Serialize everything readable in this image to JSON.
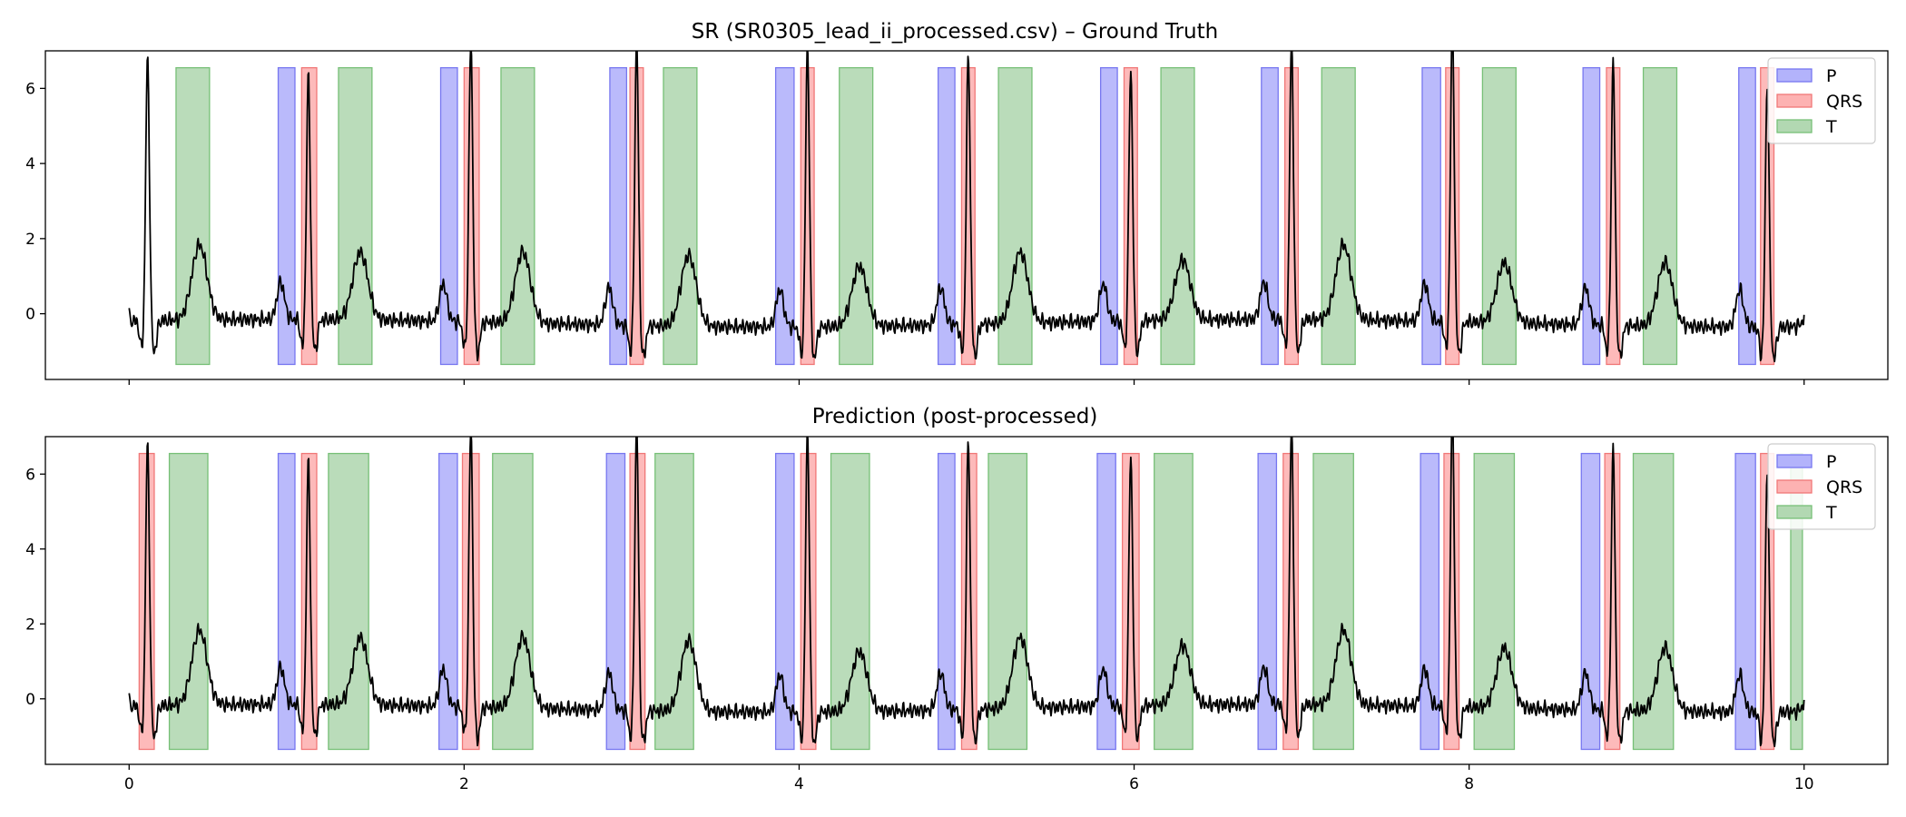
{
  "chart_data": [
    {
      "type": "line",
      "title": "SR (SR0305_lead_ii_processed.csv) – Ground Truth",
      "xlabel": "",
      "ylabel": "",
      "xlim": [
        -0.5,
        10.5
      ],
      "ylim": [
        -1.75,
        7.0
      ],
      "xticks": [],
      "yticks": [
        0,
        2,
        4,
        6
      ],
      "grid": false,
      "legend_position": "top-right",
      "signal_color": "#000000",
      "band_range": [
        -1.35,
        6.55
      ],
      "legend": [
        {
          "label": "P",
          "fill": "#b3b3fb",
          "stroke": "#7777f0"
        },
        {
          "label": "QRS",
          "fill": "#fdb2b2",
          "stroke": "#f07777"
        },
        {
          "label": "T",
          "fill": "#b2d8b2",
          "stroke": "#77c077"
        }
      ],
      "segments": [
        {
          "label": "T",
          "start": 0.28,
          "end": 0.48
        },
        {
          "label": "P",
          "start": 0.89,
          "end": 0.99
        },
        {
          "label": "QRS",
          "start": 1.03,
          "end": 1.12
        },
        {
          "label": "T",
          "start": 1.25,
          "end": 1.45
        },
        {
          "label": "P",
          "start": 1.86,
          "end": 1.96
        },
        {
          "label": "QRS",
          "start": 2.0,
          "end": 2.09
        },
        {
          "label": "T",
          "start": 2.22,
          "end": 2.42
        },
        {
          "label": "P",
          "start": 2.87,
          "end": 2.97
        },
        {
          "label": "QRS",
          "start": 2.99,
          "end": 3.07
        },
        {
          "label": "T",
          "start": 3.19,
          "end": 3.39
        },
        {
          "label": "P",
          "start": 3.86,
          "end": 3.97
        },
        {
          "label": "QRS",
          "start": 4.01,
          "end": 4.09
        },
        {
          "label": "T",
          "start": 4.24,
          "end": 4.44
        },
        {
          "label": "P",
          "start": 4.83,
          "end": 4.93
        },
        {
          "label": "QRS",
          "start": 4.97,
          "end": 5.05
        },
        {
          "label": "T",
          "start": 5.19,
          "end": 5.39
        },
        {
          "label": "P",
          "start": 5.8,
          "end": 5.9
        },
        {
          "label": "QRS",
          "start": 5.94,
          "end": 6.02
        },
        {
          "label": "T",
          "start": 6.16,
          "end": 6.36
        },
        {
          "label": "P",
          "start": 6.76,
          "end": 6.86
        },
        {
          "label": "QRS",
          "start": 6.9,
          "end": 6.98
        },
        {
          "label": "T",
          "start": 7.12,
          "end": 7.32
        },
        {
          "label": "P",
          "start": 7.72,
          "end": 7.83
        },
        {
          "label": "QRS",
          "start": 7.86,
          "end": 7.94
        },
        {
          "label": "T",
          "start": 8.08,
          "end": 8.28
        },
        {
          "label": "P",
          "start": 8.68,
          "end": 8.78
        },
        {
          "label": "QRS",
          "start": 8.82,
          "end": 8.9
        },
        {
          "label": "T",
          "start": 9.04,
          "end": 9.24
        },
        {
          "label": "P",
          "start": 9.61,
          "end": 9.71
        },
        {
          "label": "QRS",
          "start": 9.74,
          "end": 9.82
        }
      ]
    },
    {
      "type": "line",
      "title": "Prediction (post-processed)",
      "xlabel": "",
      "ylabel": "",
      "xlim": [
        -0.5,
        10.5
      ],
      "ylim": [
        -1.75,
        7.0
      ],
      "xticks": [
        0,
        2,
        4,
        6,
        8,
        10
      ],
      "yticks": [
        0,
        2,
        4,
        6
      ],
      "grid": false,
      "legend_position": "top-right",
      "signal_color": "#000000",
      "band_range": [
        -1.35,
        6.55
      ],
      "legend": [
        {
          "label": "P",
          "fill": "#b3b3fb",
          "stroke": "#7777f0"
        },
        {
          "label": "QRS",
          "fill": "#fdb2b2",
          "stroke": "#f07777"
        },
        {
          "label": "T",
          "fill": "#b2d8b2",
          "stroke": "#77c077"
        }
      ],
      "segments": [
        {
          "label": "QRS",
          "start": 0.06,
          "end": 0.15
        },
        {
          "label": "T",
          "start": 0.24,
          "end": 0.47
        },
        {
          "label": "P",
          "start": 0.89,
          "end": 0.99
        },
        {
          "label": "QRS",
          "start": 1.03,
          "end": 1.12
        },
        {
          "label": "T",
          "start": 1.19,
          "end": 1.43
        },
        {
          "label": "P",
          "start": 1.85,
          "end": 1.96
        },
        {
          "label": "QRS",
          "start": 1.99,
          "end": 2.09
        },
        {
          "label": "T",
          "start": 2.17,
          "end": 2.41
        },
        {
          "label": "P",
          "start": 2.85,
          "end": 2.96
        },
        {
          "label": "QRS",
          "start": 2.99,
          "end": 3.08
        },
        {
          "label": "T",
          "start": 3.14,
          "end": 3.37
        },
        {
          "label": "P",
          "start": 3.86,
          "end": 3.97
        },
        {
          "label": "QRS",
          "start": 4.01,
          "end": 4.1
        },
        {
          "label": "T",
          "start": 4.19,
          "end": 4.42
        },
        {
          "label": "P",
          "start": 4.83,
          "end": 4.93
        },
        {
          "label": "QRS",
          "start": 4.97,
          "end": 5.06
        },
        {
          "label": "T",
          "start": 5.13,
          "end": 5.36
        },
        {
          "label": "P",
          "start": 5.78,
          "end": 5.89
        },
        {
          "label": "QRS",
          "start": 5.93,
          "end": 6.03
        },
        {
          "label": "T",
          "start": 6.12,
          "end": 6.35
        },
        {
          "label": "P",
          "start": 6.74,
          "end": 6.85
        },
        {
          "label": "QRS",
          "start": 6.89,
          "end": 6.98
        },
        {
          "label": "T",
          "start": 7.07,
          "end": 7.31
        },
        {
          "label": "P",
          "start": 7.71,
          "end": 7.82
        },
        {
          "label": "QRS",
          "start": 7.85,
          "end": 7.94
        },
        {
          "label": "T",
          "start": 8.03,
          "end": 8.27
        },
        {
          "label": "P",
          "start": 8.67,
          "end": 8.78
        },
        {
          "label": "QRS",
          "start": 8.81,
          "end": 8.9
        },
        {
          "label": "T",
          "start": 8.98,
          "end": 9.22
        },
        {
          "label": "P",
          "start": 9.59,
          "end": 9.71
        },
        {
          "label": "QRS",
          "start": 9.74,
          "end": 9.82
        },
        {
          "label": "T",
          "start": 9.92,
          "end": 9.99
        }
      ]
    }
  ]
}
